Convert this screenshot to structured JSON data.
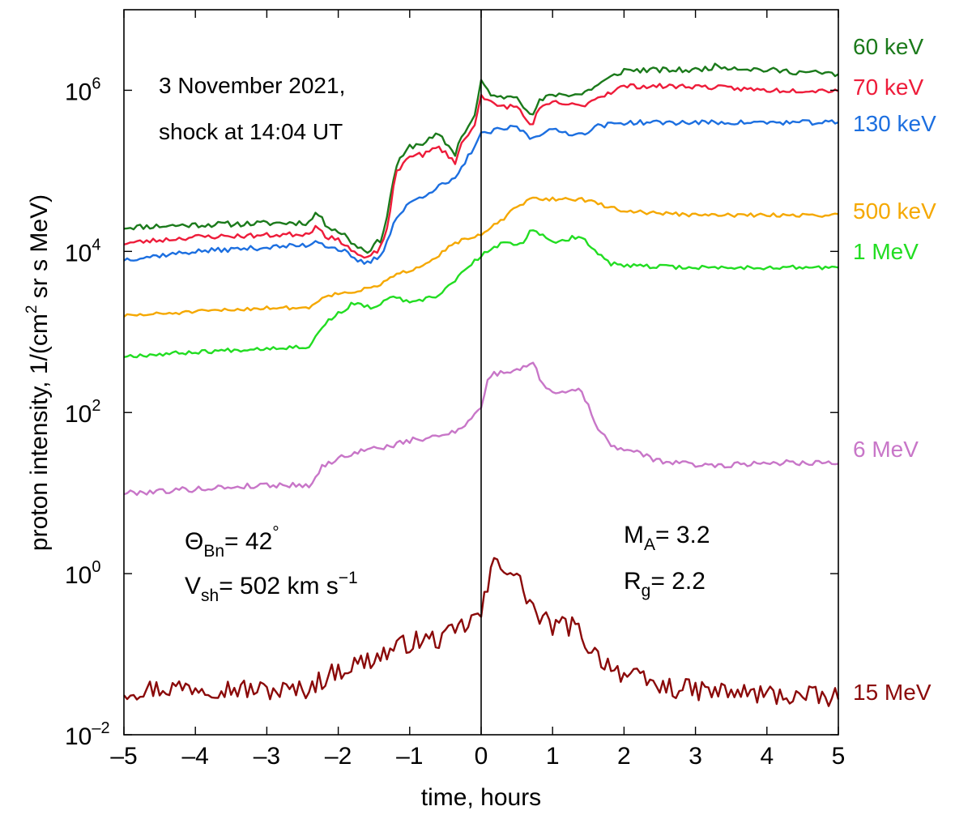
{
  "chart_data": {
    "type": "line",
    "y_scale": "log10",
    "xlabel": "time, hours",
    "ylabel": {
      "prefix": "proton intensity, 1/(cm",
      "sup": "2",
      "suffix": " sr s MeV)"
    },
    "xlim": [
      -5,
      5
    ],
    "ylim_log10": [
      -2,
      7
    ],
    "x_ticks": [
      {
        "v": -5,
        "label": "–5"
      },
      {
        "v": -4,
        "label": "–4"
      },
      {
        "v": -3,
        "label": "–3"
      },
      {
        "v": -2,
        "label": "–2"
      },
      {
        "v": -1,
        "label": "–1"
      },
      {
        "v": 0,
        "label": "0"
      },
      {
        "v": 1,
        "label": "1"
      },
      {
        "v": 2,
        "label": "2"
      },
      {
        "v": 3,
        "label": "3"
      },
      {
        "v": 4,
        "label": "4"
      },
      {
        "v": 5,
        "label": "5"
      }
    ],
    "y_ticks": [
      {
        "exp": -2,
        "base": "10",
        "sup": "–2"
      },
      {
        "exp": 0,
        "base": "10",
        "sup": "0"
      },
      {
        "exp": 2,
        "base": "10",
        "sup": "2"
      },
      {
        "exp": 4,
        "base": "10",
        "sup": "4"
      },
      {
        "exp": 6,
        "base": "10",
        "sup": "6"
      }
    ],
    "shock_time": 0,
    "annotations": {
      "date_line1": "3 November 2021,",
      "date_line2": "shock at 14:04 UT",
      "theta_sym": "Θ",
      "theta_sub": "Bn",
      "theta_val": "= 42",
      "theta_sup": "°",
      "vsh_sym": "V",
      "vsh_sub": "sh",
      "vsh_val": "= 502 km s",
      "vsh_sup": "−1",
      "ma_sym": "M",
      "ma_sub": "A",
      "ma_val": "= 3.2",
      "rg_sym": "R",
      "rg_sub": "g",
      "rg_val": "= 2.2"
    },
    "series": [
      {
        "name": "60 keV",
        "color": "#1b7a1b",
        "seed": 11,
        "noise": 0.035,
        "log10_points": [
          [
            -5,
            4.3
          ],
          [
            -4,
            4.33
          ],
          [
            -3,
            4.35
          ],
          [
            -2.4,
            4.36
          ],
          [
            -2.3,
            4.5
          ],
          [
            -2.2,
            4.35
          ],
          [
            -1.9,
            4.2
          ],
          [
            -1.8,
            4.1
          ],
          [
            -1.6,
            4.0
          ],
          [
            -1.4,
            4.15
          ],
          [
            -1.3,
            4.5
          ],
          [
            -1.2,
            5.05
          ],
          [
            -1.0,
            5.3
          ],
          [
            -0.8,
            5.35
          ],
          [
            -0.6,
            5.45
          ],
          [
            -0.35,
            5.2
          ],
          [
            -0.3,
            5.4
          ],
          [
            -0.1,
            5.65
          ],
          [
            0,
            6.1
          ],
          [
            0.2,
            5.9
          ],
          [
            0.5,
            5.95
          ],
          [
            0.7,
            5.65
          ],
          [
            0.8,
            5.85
          ],
          [
            1.0,
            5.95
          ],
          [
            1.4,
            5.95
          ],
          [
            1.6,
            6.05
          ],
          [
            2.0,
            6.25
          ],
          [
            3.0,
            6.25
          ],
          [
            3.3,
            6.3
          ],
          [
            4.0,
            6.25
          ],
          [
            5.0,
            6.2
          ]
        ]
      },
      {
        "name": "70 keV",
        "color": "#ee1c3a",
        "seed": 23,
        "noise": 0.03,
        "log10_points": [
          [
            -5,
            4.1
          ],
          [
            -4,
            4.18
          ],
          [
            -3,
            4.2
          ],
          [
            -2.4,
            4.22
          ],
          [
            -2.3,
            4.35
          ],
          [
            -2.2,
            4.2
          ],
          [
            -1.9,
            4.1
          ],
          [
            -1.8,
            4.0
          ],
          [
            -1.6,
            3.9
          ],
          [
            -1.4,
            4.05
          ],
          [
            -1.3,
            4.35
          ],
          [
            -1.2,
            4.95
          ],
          [
            -1.0,
            5.2
          ],
          [
            -0.8,
            5.2
          ],
          [
            -0.6,
            5.3
          ],
          [
            -0.35,
            5.1
          ],
          [
            -0.3,
            5.3
          ],
          [
            -0.1,
            5.55
          ],
          [
            0,
            5.95
          ],
          [
            0.2,
            5.8
          ],
          [
            0.5,
            5.8
          ],
          [
            0.7,
            5.55
          ],
          [
            0.8,
            5.75
          ],
          [
            1.0,
            5.85
          ],
          [
            1.4,
            5.8
          ],
          [
            1.6,
            5.9
          ],
          [
            2.0,
            6.05
          ],
          [
            3.0,
            6.05
          ],
          [
            4.0,
            6.0
          ],
          [
            5.0,
            6.0
          ]
        ]
      },
      {
        "name": "130 keV",
        "color": "#1c6fe0",
        "seed": 37,
        "noise": 0.03,
        "log10_points": [
          [
            -5,
            3.9
          ],
          [
            -4,
            4.0
          ],
          [
            -3,
            4.05
          ],
          [
            -2.4,
            4.08
          ],
          [
            -2.3,
            4.15
          ],
          [
            -2.2,
            4.08
          ],
          [
            -1.9,
            4.0
          ],
          [
            -1.8,
            3.9
          ],
          [
            -1.6,
            3.85
          ],
          [
            -1.4,
            3.95
          ],
          [
            -1.2,
            4.4
          ],
          [
            -1.0,
            4.6
          ],
          [
            -0.8,
            4.7
          ],
          [
            -0.6,
            4.8
          ],
          [
            -0.35,
            4.9
          ],
          [
            -0.2,
            5.15
          ],
          [
            0,
            5.45
          ],
          [
            0.2,
            5.5
          ],
          [
            0.5,
            5.55
          ],
          [
            0.7,
            5.4
          ],
          [
            0.9,
            5.5
          ],
          [
            1.0,
            5.5
          ],
          [
            1.4,
            5.45
          ],
          [
            1.6,
            5.55
          ],
          [
            2.0,
            5.6
          ],
          [
            3.0,
            5.6
          ],
          [
            4.0,
            5.6
          ],
          [
            5.0,
            5.6
          ]
        ]
      },
      {
        "name": "500 keV",
        "color": "#f5a800",
        "seed": 51,
        "noise": 0.022,
        "log10_points": [
          [
            -5,
            3.2
          ],
          [
            -4,
            3.25
          ],
          [
            -3,
            3.3
          ],
          [
            -2.4,
            3.3
          ],
          [
            -2.2,
            3.45
          ],
          [
            -1.8,
            3.5
          ],
          [
            -1.5,
            3.55
          ],
          [
            -1.2,
            3.7
          ],
          [
            -0.9,
            3.8
          ],
          [
            -0.6,
            3.95
          ],
          [
            -0.4,
            4.1
          ],
          [
            -0.2,
            4.15
          ],
          [
            0,
            4.2
          ],
          [
            0.3,
            4.4
          ],
          [
            0.5,
            4.55
          ],
          [
            0.7,
            4.65
          ],
          [
            1.0,
            4.65
          ],
          [
            1.4,
            4.65
          ],
          [
            1.6,
            4.6
          ],
          [
            2.0,
            4.5
          ],
          [
            3.0,
            4.45
          ],
          [
            4.0,
            4.45
          ],
          [
            5.0,
            4.45
          ]
        ]
      },
      {
        "name": "1 MeV",
        "color": "#22dd22",
        "seed": 67,
        "noise": 0.025,
        "log10_points": [
          [
            -5,
            2.7
          ],
          [
            -4,
            2.75
          ],
          [
            -3,
            2.8
          ],
          [
            -2.4,
            2.82
          ],
          [
            -2.2,
            3.1
          ],
          [
            -1.8,
            3.35
          ],
          [
            -1.5,
            3.3
          ],
          [
            -1.2,
            3.45
          ],
          [
            -1.0,
            3.35
          ],
          [
            -0.6,
            3.45
          ],
          [
            -0.3,
            3.7
          ],
          [
            0,
            3.95
          ],
          [
            0.3,
            4.1
          ],
          [
            0.6,
            4.1
          ],
          [
            0.7,
            4.3
          ],
          [
            1.0,
            4.1
          ],
          [
            1.4,
            4.2
          ],
          [
            1.6,
            4.0
          ],
          [
            1.8,
            3.85
          ],
          [
            2.0,
            3.82
          ],
          [
            3.0,
            3.8
          ],
          [
            4.0,
            3.8
          ],
          [
            5.0,
            3.8
          ]
        ]
      },
      {
        "name": "6 MeV",
        "color": "#c876c8",
        "seed": 79,
        "noise": 0.035,
        "log10_points": [
          [
            -5,
            1.0
          ],
          [
            -4,
            1.05
          ],
          [
            -3,
            1.1
          ],
          [
            -2.4,
            1.1
          ],
          [
            -2.2,
            1.35
          ],
          [
            -1.8,
            1.5
          ],
          [
            -1.5,
            1.55
          ],
          [
            -1.2,
            1.6
          ],
          [
            -1.0,
            1.65
          ],
          [
            -0.6,
            1.7
          ],
          [
            -0.3,
            1.8
          ],
          [
            0,
            2.05
          ],
          [
            0.1,
            2.45
          ],
          [
            0.3,
            2.5
          ],
          [
            0.6,
            2.55
          ],
          [
            0.7,
            2.65
          ],
          [
            0.9,
            2.3
          ],
          [
            1.1,
            2.25
          ],
          [
            1.4,
            2.3
          ],
          [
            1.6,
            1.85
          ],
          [
            1.8,
            1.6
          ],
          [
            2.0,
            1.55
          ],
          [
            2.5,
            1.4
          ],
          [
            3.0,
            1.35
          ],
          [
            3.5,
            1.35
          ],
          [
            4.0,
            1.38
          ],
          [
            5.0,
            1.38
          ]
        ]
      },
      {
        "name": "15 MeV",
        "color": "#8b0a0a",
        "seed": 97,
        "noise": 0.13,
        "log10_points": [
          [
            -5,
            -1.45
          ],
          [
            -4,
            -1.4
          ],
          [
            -3,
            -1.45
          ],
          [
            -2.5,
            -1.45
          ],
          [
            -2.0,
            -1.2
          ],
          [
            -1.5,
            -1.05
          ],
          [
            -1.0,
            -0.85
          ],
          [
            -0.5,
            -0.8
          ],
          [
            0,
            -0.5
          ],
          [
            0.2,
            0.2
          ],
          [
            0.4,
            0.05
          ],
          [
            0.6,
            -0.2
          ],
          [
            0.8,
            -0.55
          ],
          [
            1.0,
            -0.65
          ],
          [
            1.3,
            -0.65
          ],
          [
            1.6,
            -1.0
          ],
          [
            2.0,
            -1.25
          ],
          [
            2.5,
            -1.4
          ],
          [
            3.0,
            -1.45
          ],
          [
            4.0,
            -1.5
          ],
          [
            5.0,
            -1.55
          ]
        ]
      }
    ]
  }
}
